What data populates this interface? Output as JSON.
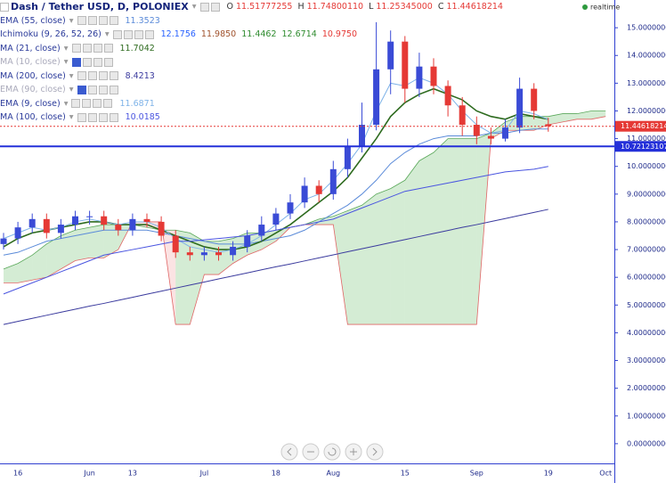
{
  "header": {
    "symbol": "Dash / Tether USD, D, POLONIEX",
    "o_label": "O",
    "o": "11.51777255",
    "h_label": "H",
    "h": "11.74800110",
    "l_label": "L",
    "l": "11.25345000",
    "c_label": "C",
    "c": "11.44618214",
    "status": "realtime"
  },
  "chart_data": {
    "type": "candlestick",
    "categories": [
      null,
      "16",
      null,
      null,
      null,
      null,
      "Jun",
      null,
      null,
      "13",
      null,
      null,
      null,
      null,
      "Jul",
      null,
      null,
      null,
      null,
      "18",
      null,
      null,
      null,
      "Aug",
      null,
      null,
      null,
      null,
      "15",
      null,
      null,
      null,
      null,
      "Sep",
      null,
      null,
      null,
      null,
      "19",
      null,
      null,
      null,
      "Oct"
    ],
    "open": [
      7.2,
      7.4,
      7.8,
      8.1,
      7.6,
      7.9,
      8.2,
      8.2,
      7.9,
      7.7,
      8.1,
      8.0,
      7.5,
      6.9,
      6.8,
      6.9,
      6.8,
      7.1,
      7.5,
      7.9,
      8.3,
      8.7,
      9.3,
      9.0,
      9.9,
      10.7,
      11.5,
      13.5,
      14.5,
      12.8,
      13.6,
      12.9,
      12.2,
      11.5,
      11.1,
      11.0,
      11.4,
      12.8,
      11.52,
      null,
      null,
      null,
      null
    ],
    "high": [
      7.6,
      8.0,
      8.3,
      8.3,
      8.1,
      8.4,
      8.4,
      8.4,
      8.1,
      8.3,
      8.3,
      8.2,
      7.7,
      7.1,
      7.1,
      7.1,
      7.3,
      7.7,
      8.2,
      8.5,
      9.0,
      9.6,
      9.5,
      10.2,
      11.0,
      12.3,
      15.2,
      14.9,
      14.7,
      14.1,
      13.9,
      13.1,
      12.5,
      11.8,
      11.4,
      11.7,
      13.2,
      13.0,
      11.75,
      null,
      null,
      null,
      null
    ],
    "low": [
      7.0,
      7.2,
      7.6,
      7.4,
      7.4,
      7.7,
      7.9,
      7.7,
      7.5,
      7.5,
      7.8,
      7.3,
      6.7,
      6.6,
      6.6,
      6.6,
      6.6,
      6.9,
      7.3,
      7.7,
      8.1,
      8.5,
      8.7,
      8.8,
      9.6,
      10.5,
      11.3,
      12.6,
      12.3,
      12.5,
      12.6,
      11.8,
      11.1,
      10.8,
      10.8,
      10.9,
      11.2,
      11.7,
      11.25,
      null,
      null,
      null,
      null
    ],
    "close": [
      7.4,
      7.8,
      8.1,
      7.6,
      7.9,
      8.2,
      8.2,
      7.9,
      7.7,
      8.1,
      8.0,
      7.5,
      6.9,
      6.8,
      6.9,
      6.8,
      7.1,
      7.5,
      7.9,
      8.3,
      8.7,
      9.3,
      9.0,
      9.9,
      10.7,
      11.5,
      13.5,
      14.5,
      12.8,
      13.6,
      12.9,
      12.2,
      11.5,
      11.1,
      11.0,
      11.4,
      12.8,
      12.0,
      11.45,
      null,
      null,
      null,
      null
    ],
    "up_color": "#3a4bd6",
    "down_color": "#e53935",
    "series": [
      {
        "name": "EMA (55, close)",
        "color": "#5b8bd9",
        "value_label": "11.3523",
        "values": [
          6.8,
          6.9,
          7.1,
          7.3,
          7.4,
          7.5,
          7.6,
          7.7,
          7.7,
          7.7,
          7.7,
          7.6,
          7.5,
          7.4,
          7.3,
          7.2,
          7.2,
          7.2,
          7.3,
          7.4,
          7.5,
          7.7,
          8.0,
          8.3,
          8.6,
          9.0,
          9.5,
          10.1,
          10.5,
          10.8,
          11.0,
          11.1,
          11.1,
          11.1,
          11.2,
          11.2,
          11.3,
          11.35,
          11.35,
          null,
          null,
          null,
          null
        ]
      },
      {
        "name": "Ichimoku (9, 26, 52, 26)",
        "value_labels": [
          "12.1756",
          "11.9850",
          "11.4462",
          "12.6714",
          "10.9750"
        ],
        "label_colors": [
          "#2962ff",
          "#a0522d",
          "#2e8b2e",
          "#2e8b2e",
          "#e53935"
        ],
        "up_fill": "rgba(60,170,60,0.22)",
        "down_fill": "rgba(230,80,80,0.16)",
        "up_color": "#5aa85a",
        "down_color": "#e06666",
        "span_a": [
          6.3,
          6.5,
          6.8,
          7.2,
          7.5,
          7.7,
          7.8,
          7.9,
          7.9,
          7.9,
          7.8,
          7.7,
          7.7,
          7.6,
          7.3,
          7.3,
          7.4,
          7.6,
          7.6,
          7.7,
          7.8,
          7.9,
          8.1,
          8.2,
          8.4,
          8.6,
          9.0,
          9.2,
          9.5,
          10.2,
          10.5,
          11.0,
          11.0,
          11.0,
          11.2,
          11.6,
          11.8,
          11.8,
          11.8,
          11.9,
          11.9,
          12.0,
          12.0
        ],
        "span_b": [
          5.8,
          5.8,
          5.9,
          6.0,
          6.3,
          6.6,
          6.7,
          6.7,
          7.0,
          8.0,
          8.0,
          8.0,
          4.3,
          4.3,
          6.1,
          6.1,
          6.5,
          6.8,
          7.0,
          7.3,
          7.8,
          7.9,
          7.9,
          7.9,
          4.3,
          4.3,
          4.3,
          4.3,
          4.3,
          4.3,
          4.3,
          4.3,
          4.3,
          4.3,
          11.0,
          11.3,
          11.3,
          11.3,
          11.5,
          11.6,
          11.7,
          11.7,
          11.8
        ]
      },
      {
        "name": "MA (21, close)",
        "color": "#2e6b1f",
        "value_label": "11.7042",
        "values": [
          7.1,
          7.4,
          7.6,
          7.7,
          7.8,
          7.9,
          8.0,
          8.0,
          7.9,
          7.9,
          7.9,
          7.7,
          7.5,
          7.3,
          7.1,
          7.0,
          7.0,
          7.1,
          7.3,
          7.6,
          7.9,
          8.3,
          8.7,
          9.1,
          9.6,
          10.3,
          11.0,
          11.8,
          12.3,
          12.6,
          12.8,
          12.6,
          12.4,
          12.0,
          11.8,
          11.7,
          11.9,
          11.8,
          11.7,
          null,
          null,
          null,
          null
        ]
      },
      {
        "name": "MA (10, close)",
        "hidden": true
      },
      {
        "name": "MA (200, close)",
        "color": "#3b3b9e",
        "value_label": "8.4213",
        "values": [
          4.3,
          4.41,
          4.52,
          4.63,
          4.74,
          4.85,
          4.96,
          5.06,
          5.17,
          5.28,
          5.39,
          5.5,
          5.61,
          5.72,
          5.83,
          5.94,
          6.05,
          6.16,
          6.27,
          6.38,
          6.48,
          6.59,
          6.7,
          6.81,
          6.92,
          7.03,
          7.14,
          7.25,
          7.36,
          7.47,
          7.58,
          7.69,
          7.8,
          7.9,
          8.01,
          8.12,
          8.23,
          8.34,
          8.45,
          null,
          null,
          null,
          null
        ]
      },
      {
        "name": "EMA (90, close)",
        "hidden": true
      },
      {
        "name": "EMA (9, close)",
        "color": "#7fb3e8",
        "value_label": "11.6871",
        "values": [
          7.4,
          7.6,
          7.8,
          7.7,
          7.8,
          8.0,
          8.1,
          8.0,
          7.9,
          8.0,
          8.0,
          7.8,
          7.4,
          7.1,
          7.0,
          6.9,
          7.0,
          7.2,
          7.5,
          7.9,
          8.3,
          8.8,
          9.0,
          9.5,
          10.1,
          10.8,
          12.0,
          13.0,
          12.9,
          13.2,
          13.0,
          12.6,
          12.0,
          11.5,
          11.2,
          11.3,
          12.0,
          11.9,
          11.69,
          null,
          null,
          null,
          null
        ]
      },
      {
        "name": "MA (100, close)",
        "color": "#4a55e0",
        "value_label": "10.0185",
        "values": [
          5.4,
          5.6,
          5.8,
          6.0,
          6.2,
          6.4,
          6.6,
          6.8,
          6.9,
          7.0,
          7.1,
          7.2,
          7.3,
          7.3,
          7.35,
          7.4,
          7.45,
          7.5,
          7.6,
          7.7,
          7.8,
          7.9,
          8.0,
          8.1,
          8.3,
          8.5,
          8.7,
          8.9,
          9.1,
          9.2,
          9.3,
          9.4,
          9.5,
          9.6,
          9.7,
          9.8,
          9.85,
          9.9,
          10.0,
          null,
          null,
          null,
          null
        ]
      }
    ],
    "price_lines": [
      {
        "value": 11.44618214,
        "label": "11.44618214",
        "color": "#e53935",
        "style": "dotted"
      },
      {
        "value": 10.72123107,
        "label": "10.72123107",
        "color": "#2430d9",
        "style": "solid"
      }
    ],
    "ylim": [
      -0.55,
      16
    ],
    "yticks": [
      {
        "value": 0,
        "label": "0.00000000"
      },
      {
        "value": 1,
        "label": "1.00000000"
      },
      {
        "value": 2,
        "label": "2.00000000"
      },
      {
        "value": 3,
        "label": "3.00000000"
      },
      {
        "value": 4,
        "label": "4.00000000"
      },
      {
        "value": 5,
        "label": "5.00000000"
      },
      {
        "value": 6,
        "label": "6.00000000"
      },
      {
        "value": 7,
        "label": "7.00000000"
      },
      {
        "value": 8,
        "label": "8.00000000"
      },
      {
        "value": 9,
        "label": "9.00000000"
      },
      {
        "value": 10,
        "label": "10.00000000"
      },
      {
        "value": 11,
        "label": "11.00000000"
      },
      {
        "value": 12,
        "label": "12.00000000"
      },
      {
        "value": 13,
        "label": "13.00000000"
      },
      {
        "value": 14,
        "label": "14.00000000"
      },
      {
        "value": 15,
        "label": "15.00000000"
      }
    ]
  }
}
